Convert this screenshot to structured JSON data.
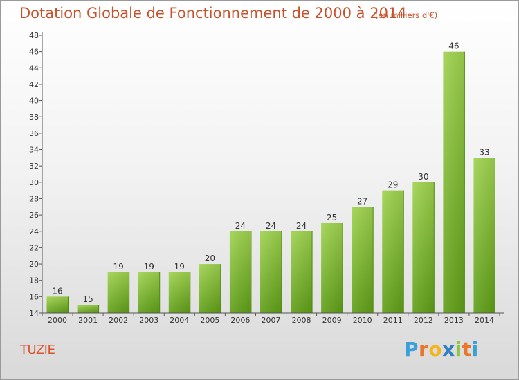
{
  "chart_data": {
    "type": "bar",
    "title": "Dotation Globale de Fonctionnement de 2000 à 2014",
    "subtitle": "(en milliers d'€)",
    "xlabel": "",
    "ylabel": "",
    "categories": [
      "2000",
      "2001",
      "2002",
      "2003",
      "2004",
      "2005",
      "2006",
      "2007",
      "2008",
      "2009",
      "2010",
      "2011",
      "2012",
      "2013",
      "2014"
    ],
    "values": [
      16,
      15,
      19,
      19,
      19,
      20,
      24,
      24,
      24,
      25,
      27,
      29,
      30,
      46,
      33
    ],
    "data_labels": [
      "16",
      "15",
      "19",
      "19",
      "19",
      "20",
      "24",
      "24",
      "24",
      "25",
      "27",
      "29",
      "30",
      "46",
      "33"
    ],
    "ylim": [
      14,
      48
    ],
    "yticks": [
      "14",
      "16",
      "18",
      "20",
      "22",
      "24",
      "26",
      "28",
      "30",
      "32",
      "34",
      "36",
      "38",
      "40",
      "42",
      "44",
      "46",
      "48"
    ],
    "grid": false,
    "bar_color": "#7cb82f"
  },
  "footer": {
    "place": "TUZIE",
    "logo": {
      "letters": [
        "P",
        "r",
        "o",
        "x",
        "i",
        "t",
        "i"
      ],
      "colors": [
        "#3aa0d8",
        "#e8762b",
        "#f2b61c",
        "#2f7fc1",
        "#8cc63f",
        "#e8762b",
        "#3aa0d8"
      ]
    }
  }
}
